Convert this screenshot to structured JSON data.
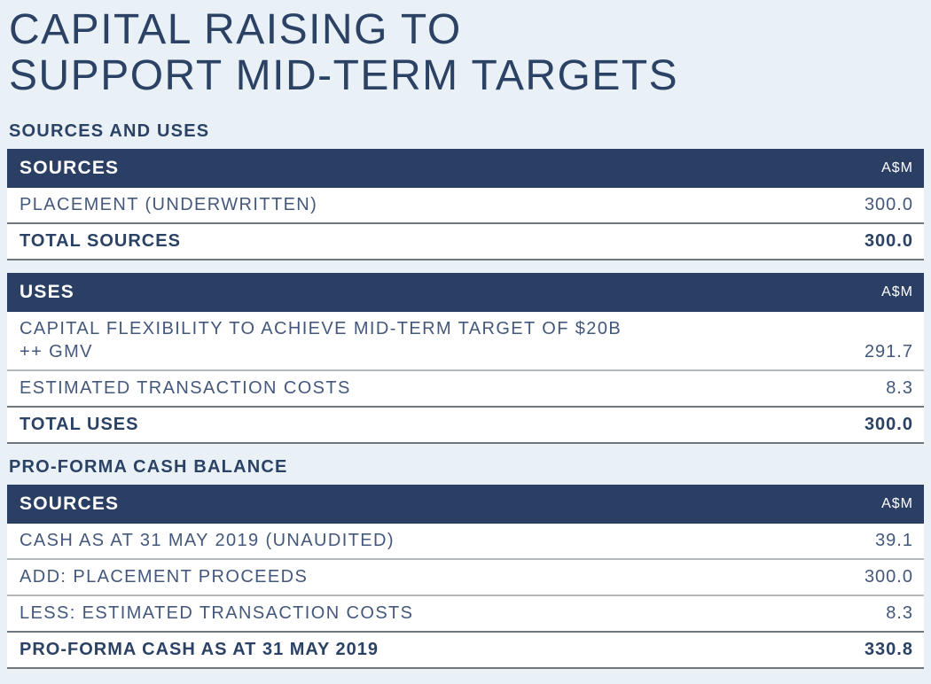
{
  "title": {
    "line1": "CAPITAL RAISING TO",
    "line2": "SUPPORT MID-TERM TARGETS"
  },
  "colors": {
    "background": "#e9f1f6",
    "navy_header_bg": "#2a3f63",
    "header_text": "#ffffff",
    "title_text": "#2b4265",
    "body_text": "#44587c",
    "row_bg": "#ffffff",
    "row_divider": "#b3b9bd",
    "strong_divider": "#6f777e"
  },
  "sections": [
    {
      "label": "SOURCES AND USES",
      "tables": [
        {
          "header": {
            "title": "SOURCES",
            "unit": "A$M"
          },
          "rows": [
            {
              "label": "PLACEMENT (UNDERWRITTEN)",
              "value": "300.0"
            }
          ],
          "total": {
            "label": "TOTAL SOURCES",
            "value": "300.0"
          }
        },
        {
          "header": {
            "title": "USES",
            "unit": "A$M"
          },
          "rows": [
            {
              "label": "CAPITAL FLEXIBILITY TO ACHIEVE MID-TERM TARGET OF $20B ++ GMV",
              "value": "291.7"
            },
            {
              "label": "ESTIMATED TRANSACTION COSTS",
              "value": "8.3"
            }
          ],
          "total": {
            "label": "TOTAL USES",
            "value": "300.0"
          }
        }
      ]
    },
    {
      "label": "PRO-FORMA CASH BALANCE",
      "tables": [
        {
          "header": {
            "title": "SOURCES",
            "unit": "A$M"
          },
          "rows": [
            {
              "label": "CASH AS AT 31 MAY 2019 (UNAUDITED)",
              "value": "39.1"
            },
            {
              "label": "ADD: PLACEMENT PROCEEDS",
              "value": "300.0"
            },
            {
              "label": "LESS: ESTIMATED TRANSACTION COSTS",
              "value": "8.3"
            }
          ],
          "total": {
            "label": "PRO-FORMA CASH AS AT 31 MAY 2019",
            "value": "330.8"
          }
        }
      ]
    }
  ]
}
